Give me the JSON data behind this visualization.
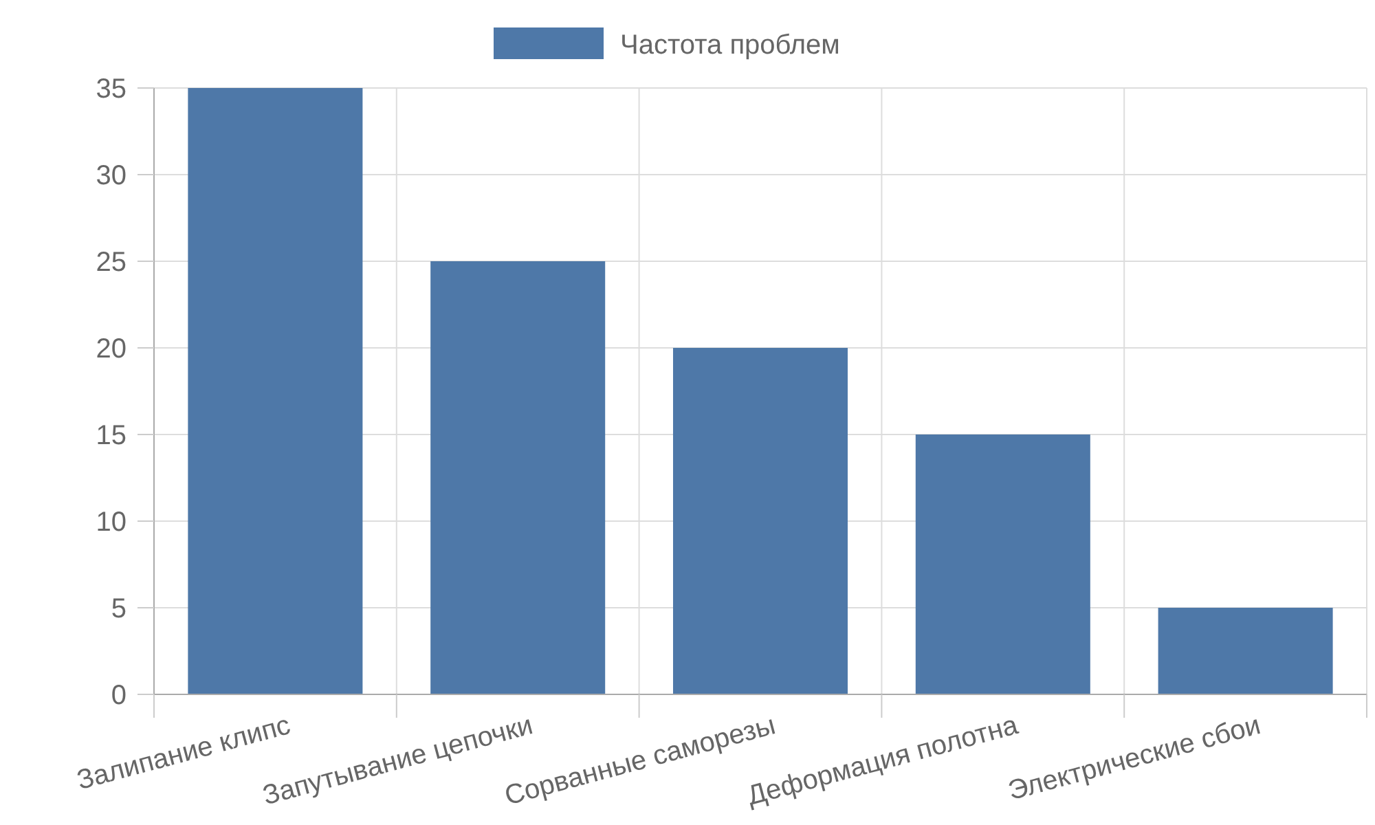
{
  "chart_data": {
    "type": "bar",
    "categories": [
      "Залипание клипс",
      "Запутывание цепочки",
      "Сорванные саморезы",
      "Деформация полотна",
      "Электрические сбои"
    ],
    "series": [
      {
        "name": "Частота проблем",
        "color": "#4e78a8",
        "values": [
          35,
          25,
          20,
          15,
          5
        ]
      }
    ],
    "ylim": [
      0,
      35
    ],
    "yticks": [
      0,
      5,
      10,
      15,
      20,
      25,
      30,
      35
    ],
    "grid": true,
    "legend": "top"
  }
}
